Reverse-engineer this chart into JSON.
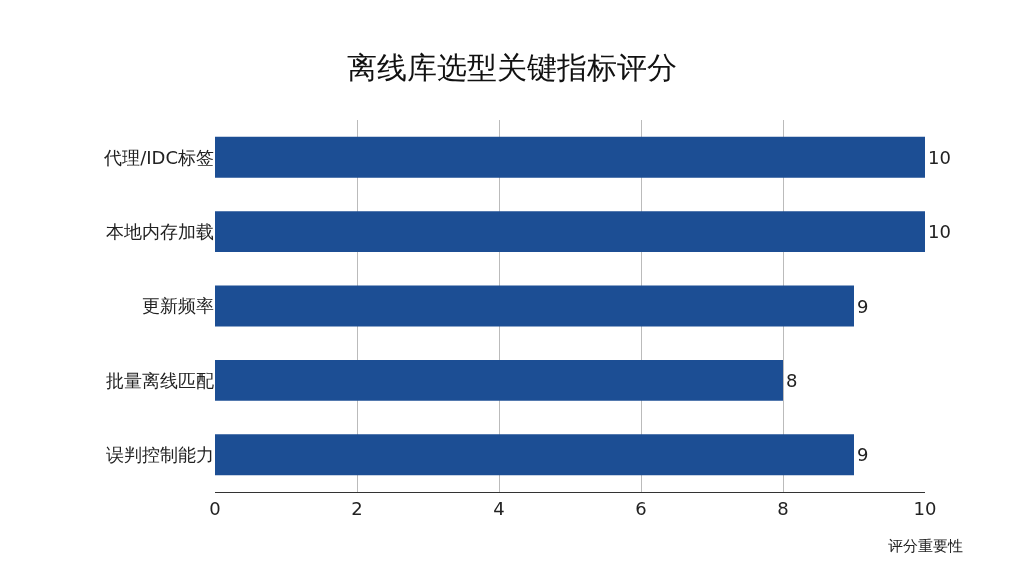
{
  "chart_data": {
    "type": "bar",
    "orientation": "horizontal",
    "title": "离线库选型关键指标评分",
    "xlabel": "评分重要性",
    "categories": [
      "代理/IDC标签",
      "本地内存加载",
      "更新频率",
      "批量离线匹配",
      "误判控制能力"
    ],
    "values": [
      10,
      10,
      9,
      8,
      9
    ],
    "color": "#1c4e94",
    "xlim": [
      0,
      10
    ],
    "xticks": [
      0,
      2,
      4,
      6,
      8,
      10
    ],
    "grid": "x",
    "data_labels": true
  }
}
